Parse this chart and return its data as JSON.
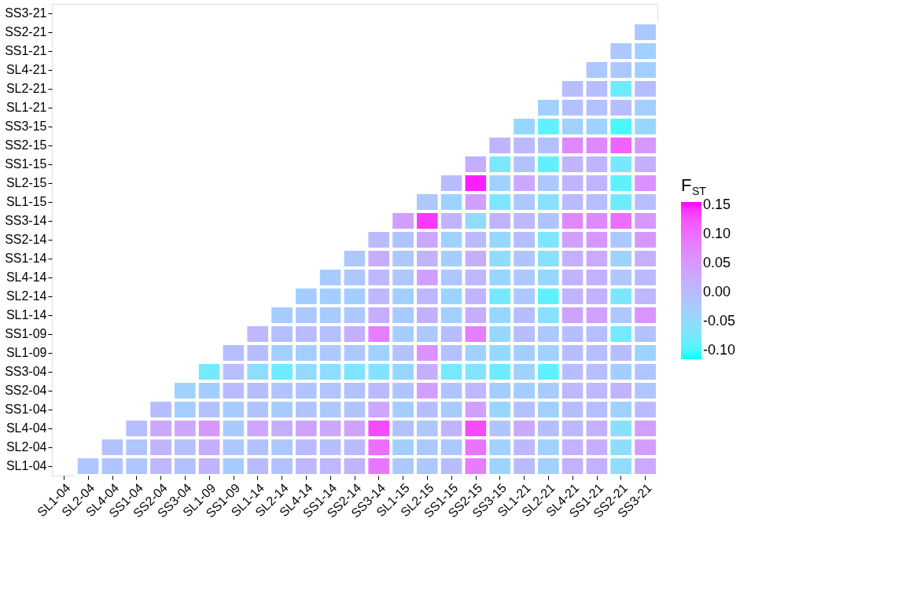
{
  "chart_data": {
    "type": "heatmap",
    "legend_title": "F$_{ST}$",
    "categories": [
      "SL1-04",
      "SL2-04",
      "SL4-04",
      "SS1-04",
      "SS2-04",
      "SS3-04",
      "SL1-09",
      "SS1-09",
      "SL1-14",
      "SL2-14",
      "SL4-14",
      "SS1-14",
      "SS2-14",
      "SS3-14",
      "SL1-15",
      "SL2-15",
      "SS1-15",
      "SS2-15",
      "SS3-15",
      "SL1-21",
      "SL2-21",
      "SL4-21",
      "SS1-21",
      "SS2-21",
      "SS3-21"
    ],
    "y_categories": [
      "SS3-21",
      "SS2-21",
      "SS1-21",
      "SL4-21",
      "SL2-21",
      "SL1-21",
      "SS3-15",
      "SS2-15",
      "SS1-15",
      "SL2-15",
      "SL1-15",
      "SS3-14",
      "SS2-14",
      "SS1-14",
      "SL4-14",
      "SL2-14",
      "SL1-14",
      "SS1-09",
      "SL1-09",
      "SS3-04",
      "SS2-04",
      "SS1-04",
      "SL4-04",
      "SL2-04",
      "SL1-04"
    ],
    "cells": [
      [
        null,
        null,
        null,
        null,
        null,
        null,
        null,
        null,
        null,
        null,
        null,
        null,
        null,
        null,
        null,
        null,
        null,
        null,
        null,
        null,
        null,
        null,
        null,
        null,
        null
      ],
      [
        null,
        null,
        null,
        null,
        null,
        null,
        null,
        null,
        null,
        null,
        null,
        null,
        null,
        null,
        null,
        null,
        null,
        null,
        null,
        null,
        null,
        null,
        null,
        null,
        -0.02
      ],
      [
        null,
        null,
        null,
        null,
        null,
        null,
        null,
        null,
        null,
        null,
        null,
        null,
        null,
        null,
        null,
        null,
        null,
        null,
        null,
        null,
        null,
        null,
        null,
        -0.02,
        -0.035
      ],
      [
        null,
        null,
        null,
        null,
        null,
        null,
        null,
        null,
        null,
        null,
        null,
        null,
        null,
        null,
        null,
        null,
        null,
        null,
        null,
        null,
        null,
        null,
        -0.02,
        -0.02,
        -0.03
      ],
      [
        null,
        null,
        null,
        null,
        null,
        null,
        null,
        null,
        null,
        null,
        null,
        null,
        null,
        null,
        null,
        null,
        null,
        null,
        null,
        null,
        null,
        -0.005,
        -0.005,
        -0.08,
        -0.005
      ],
      [
        null,
        null,
        null,
        null,
        null,
        null,
        null,
        null,
        null,
        null,
        null,
        null,
        null,
        null,
        null,
        null,
        null,
        null,
        null,
        null,
        -0.035,
        -0.01,
        -0.01,
        -0.005,
        -0.03
      ],
      [
        null,
        null,
        null,
        null,
        null,
        null,
        null,
        null,
        null,
        null,
        null,
        null,
        null,
        null,
        null,
        null,
        null,
        null,
        null,
        -0.045,
        -0.09,
        -0.035,
        -0.035,
        -0.1,
        -0.045
      ],
      [
        null,
        null,
        null,
        null,
        null,
        null,
        null,
        null,
        null,
        null,
        null,
        null,
        null,
        null,
        null,
        null,
        null,
        null,
        0.01,
        0.005,
        -0.01,
        0.07,
        0.07,
        0.11,
        0.05
      ],
      [
        null,
        null,
        null,
        null,
        null,
        null,
        null,
        null,
        null,
        null,
        null,
        null,
        null,
        null,
        null,
        null,
        null,
        0.02,
        -0.07,
        -0.01,
        -0.09,
        0.01,
        0.01,
        -0.075,
        0.02
      ],
      [
        null,
        null,
        null,
        null,
        null,
        null,
        null,
        null,
        null,
        null,
        null,
        null,
        null,
        null,
        null,
        null,
        -0.005,
        0.15,
        -0.035,
        0.03,
        -0.02,
        0.01,
        0.01,
        -0.09,
        0.06
      ],
      [
        null,
        null,
        null,
        null,
        null,
        null,
        null,
        null,
        null,
        null,
        null,
        null,
        null,
        null,
        null,
        -0.02,
        -0.04,
        0.04,
        -0.07,
        -0.02,
        -0.06,
        0.0,
        -0.005,
        -0.08,
        -0.005
      ],
      [
        null,
        null,
        null,
        null,
        null,
        null,
        null,
        null,
        null,
        null,
        null,
        null,
        null,
        null,
        0.04,
        0.14,
        0.01,
        -0.05,
        0.01,
        0.005,
        -0.015,
        0.07,
        0.07,
        0.1,
        0.05
      ],
      [
        null,
        null,
        null,
        null,
        null,
        null,
        null,
        null,
        null,
        null,
        null,
        null,
        null,
        0.0,
        -0.015,
        0.03,
        -0.035,
        0.0,
        -0.045,
        -0.005,
        -0.07,
        0.04,
        0.05,
        -0.02,
        0.05
      ],
      [
        null,
        null,
        null,
        null,
        null,
        null,
        null,
        null,
        null,
        null,
        null,
        null,
        -0.02,
        0.02,
        -0.02,
        0.01,
        -0.03,
        0.02,
        -0.05,
        -0.015,
        -0.06,
        0.015,
        0.025,
        -0.035,
        0.015
      ],
      [
        null,
        null,
        null,
        null,
        null,
        null,
        null,
        null,
        null,
        null,
        null,
        -0.025,
        -0.02,
        0.005,
        -0.02,
        0.04,
        -0.02,
        0.005,
        -0.045,
        -0.02,
        -0.045,
        0.01,
        0.015,
        -0.02,
        0.0
      ],
      [
        null,
        null,
        null,
        null,
        null,
        null,
        null,
        null,
        null,
        null,
        -0.03,
        -0.03,
        -0.03,
        0.005,
        -0.035,
        0.005,
        -0.04,
        0.01,
        -0.075,
        -0.02,
        -0.09,
        0.01,
        0.015,
        -0.07,
        0.005
      ],
      [
        null,
        null,
        null,
        null,
        null,
        null,
        null,
        null,
        null,
        -0.025,
        -0.02,
        -0.025,
        -0.02,
        0.02,
        -0.025,
        0.015,
        -0.035,
        0.02,
        -0.045,
        -0.005,
        -0.06,
        0.035,
        0.04,
        -0.02,
        0.055
      ],
      [
        null,
        null,
        null,
        null,
        null,
        null,
        null,
        null,
        0.005,
        -0.01,
        0.0,
        -0.01,
        0.015,
        0.08,
        -0.03,
        -0.02,
        -0.005,
        0.08,
        -0.045,
        -0.005,
        -0.02,
        -0.005,
        -0.005,
        -0.075,
        -0.01
      ],
      [
        null,
        null,
        null,
        null,
        null,
        null,
        null,
        -0.005,
        -0.005,
        -0.03,
        -0.03,
        -0.02,
        -0.02,
        -0.035,
        -0.01,
        0.06,
        -0.01,
        -0.035,
        -0.05,
        -0.03,
        -0.035,
        -0.005,
        -0.005,
        -0.005,
        -0.04
      ],
      [
        null,
        null,
        null,
        null,
        null,
        null,
        -0.075,
        -0.005,
        -0.055,
        -0.08,
        -0.05,
        -0.055,
        -0.07,
        -0.065,
        -0.045,
        0.02,
        -0.075,
        -0.065,
        -0.08,
        -0.035,
        -0.09,
        -0.005,
        -0.005,
        -0.03,
        -0.015
      ],
      [
        null,
        null,
        null,
        null,
        null,
        -0.035,
        -0.03,
        0.0,
        -0.005,
        -0.015,
        -0.015,
        -0.015,
        -0.01,
        0.0,
        -0.015,
        0.04,
        -0.015,
        0.005,
        -0.03,
        -0.03,
        -0.025,
        0.005,
        0.005,
        0.01,
        -0.015
      ],
      [
        null,
        null,
        null,
        null,
        -0.005,
        -0.03,
        -0.01,
        -0.025,
        -0.015,
        -0.025,
        -0.015,
        -0.02,
        -0.015,
        0.03,
        -0.03,
        -0.005,
        -0.025,
        0.04,
        -0.045,
        -0.01,
        -0.035,
        -0.005,
        -0.005,
        -0.035,
        0.0
      ],
      [
        null,
        null,
        null,
        -0.005,
        0.03,
        0.03,
        0.05,
        -0.025,
        0.03,
        0.02,
        0.035,
        0.03,
        0.035,
        0.13,
        -0.01,
        -0.02,
        0.01,
        0.13,
        -0.015,
        0.025,
        -0.005,
        0.005,
        0.015,
        -0.06,
        0.04
      ],
      [
        null,
        null,
        -0.01,
        -0.015,
        0.01,
        -0.01,
        0.02,
        -0.02,
        -0.01,
        -0.02,
        0.0,
        -0.005,
        0.0,
        0.1,
        -0.03,
        -0.02,
        -0.02,
        0.095,
        -0.035,
        0.005,
        -0.035,
        0.015,
        0.02,
        -0.055,
        0.045
      ],
      [
        null,
        -0.015,
        -0.015,
        -0.015,
        0.005,
        -0.01,
        0.01,
        -0.025,
        0.0,
        -0.01,
        0.005,
        0.005,
        0.01,
        0.09,
        -0.02,
        -0.02,
        -0.005,
        0.085,
        -0.04,
        0.0,
        -0.035,
        0.015,
        0.015,
        -0.055,
        0.025
      ]
    ],
    "clim": [
      -0.115,
      0.155
    ],
    "cticks": [
      {
        "value": -0.1,
        "label": "-0.10"
      },
      {
        "value": -0.05,
        "label": "-0.05"
      },
      {
        "value": 0.0,
        "label": "0.00"
      },
      {
        "value": 0.05,
        "label": "0.05"
      },
      {
        "value": 0.1,
        "label": "0.10"
      },
      {
        "value": 0.15,
        "label": "0.15"
      }
    ]
  }
}
